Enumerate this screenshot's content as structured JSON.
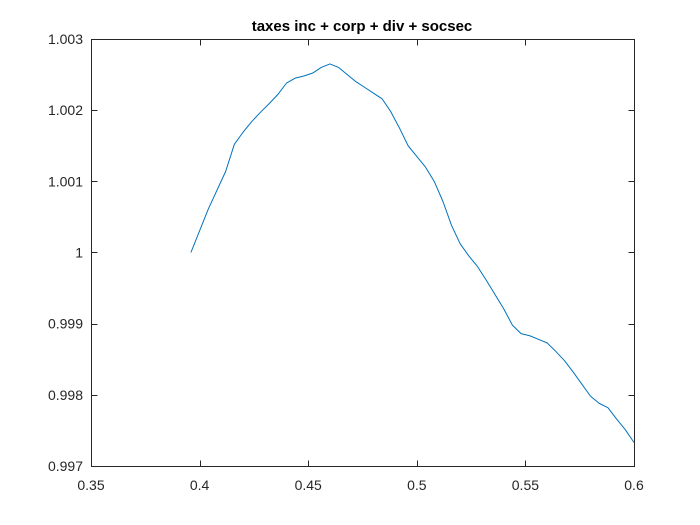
{
  "chart_data": {
    "type": "line",
    "title": "taxes inc + corp + div + socsec",
    "xlabel": "",
    "ylabel": "",
    "xlim": [
      0.35,
      0.6
    ],
    "ylim": [
      0.997,
      1.003
    ],
    "xticks": [
      0.35,
      0.4,
      0.45,
      0.5,
      0.55,
      0.6
    ],
    "xtick_labels": [
      "0.35",
      "0.4",
      "0.45",
      "0.5",
      "0.55",
      "0.6"
    ],
    "yticks": [
      0.997,
      0.998,
      0.999,
      1,
      1.001,
      1.002,
      1.003
    ],
    "ytick_labels": [
      "0.997",
      "0.998",
      "0.999",
      "1",
      "1.001",
      "1.002",
      "1.003"
    ],
    "grid": false,
    "line_color": "#0072BD",
    "series": [
      {
        "x": [
          0.396,
          0.404,
          0.412,
          0.416,
          0.42,
          0.424,
          0.428,
          0.432,
          0.436,
          0.44,
          0.444,
          0.448,
          0.452,
          0.456,
          0.46,
          0.464,
          0.468,
          0.472,
          0.476,
          0.48,
          0.484,
          0.488,
          0.492,
          0.496,
          0.5,
          0.504,
          0.508,
          0.512,
          0.516,
          0.52,
          0.524,
          0.528,
          0.532,
          0.536,
          0.54,
          0.544,
          0.548,
          0.552,
          0.556,
          0.56,
          0.564,
          0.568,
          0.572,
          0.576,
          0.58,
          0.584,
          0.588,
          0.592,
          0.596,
          0.6
        ],
        "y": [
          1.0,
          1.00061,
          1.00114,
          1.00152,
          1.00169,
          1.00184,
          1.00197,
          1.00209,
          1.00222,
          1.00238,
          1.00245,
          1.00248,
          1.00252,
          1.0026,
          1.00265,
          1.0026,
          1.0025,
          1.0024,
          1.00232,
          1.00224,
          1.00216,
          1.00198,
          1.00175,
          1.0015,
          1.00135,
          1.0012,
          1.001,
          1.00072,
          1.00038,
          1.00012,
          0.99995,
          0.9998,
          0.99961,
          0.99941,
          0.99921,
          0.99898,
          0.99886,
          0.99883,
          0.99878,
          0.99873,
          0.99861,
          0.99848,
          0.99832,
          0.99815,
          0.99798,
          0.99788,
          0.99782,
          0.99766,
          0.99751,
          0.99733
        ]
      }
    ]
  }
}
